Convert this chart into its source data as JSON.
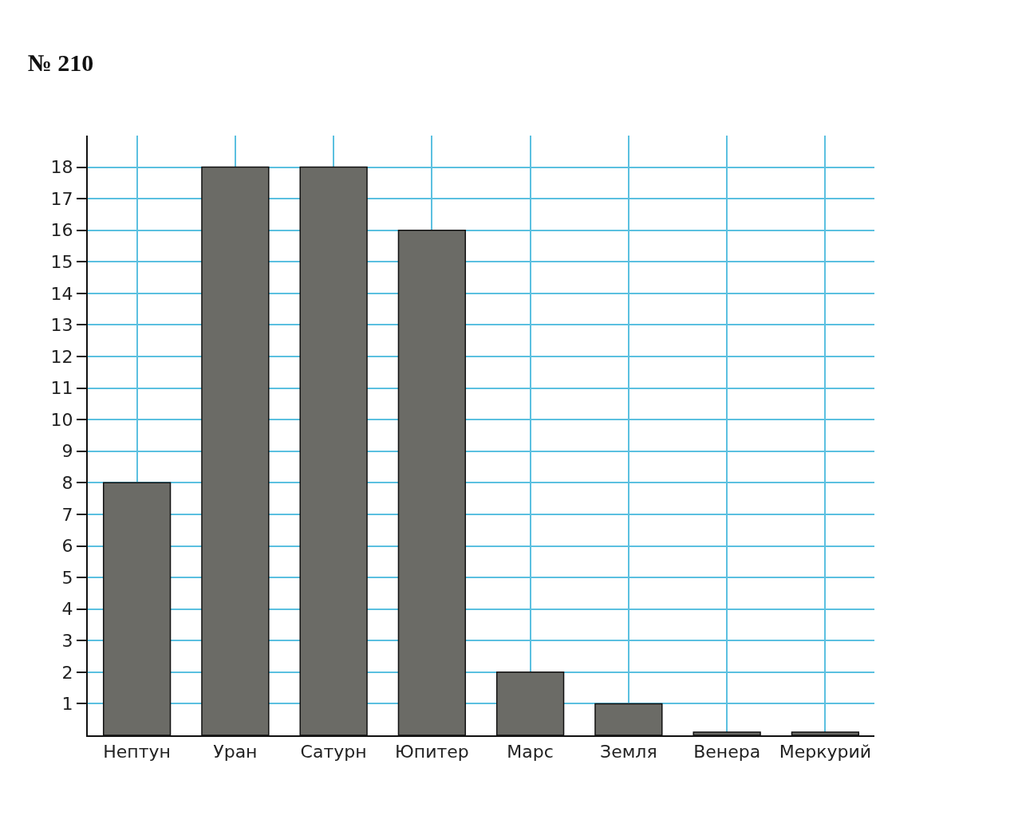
{
  "chart_data": {
    "type": "bar",
    "title": "№ 210",
    "categories": [
      "Нептун",
      "Уран",
      "Сатурн",
      "Юпитер",
      "Марс",
      "Земля",
      "Венера",
      "Меркурий"
    ],
    "values": [
      8,
      18,
      18,
      16,
      2,
      1,
      0.1,
      0.1
    ],
    "color": "#6b6b66",
    "ylim": [
      0,
      19
    ],
    "yticks": [
      1,
      2,
      3,
      4,
      5,
      6,
      7,
      8,
      9,
      10,
      11,
      12,
      13,
      14,
      15,
      16,
      17,
      18
    ],
    "grid": true
  }
}
